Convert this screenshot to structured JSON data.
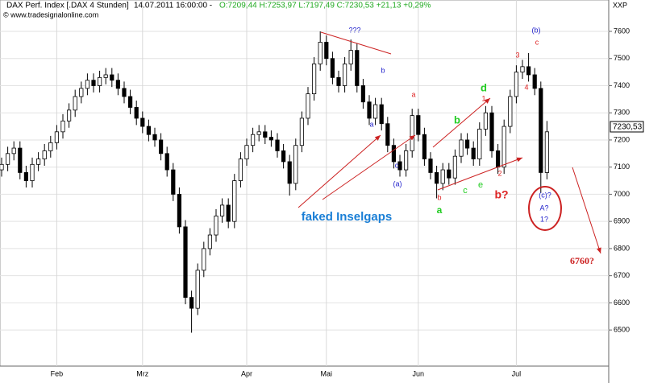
{
  "header": {
    "title": "DAX Perf. Index [.DAX  4 Stunden]",
    "datetime": "14.07.2011 16:00:00 -",
    "ohlc": "O:7209,44 H:7253,97 L:7197,49 C:7230,53 +21,13 +0,29%",
    "copyright": "© www.tradesignalonline.com",
    "corner": "XXP",
    "last_price": "7230,53"
  },
  "chart_data": {
    "type": "candlestick",
    "categories": [
      null,
      null,
      null,
      null,
      null,
      null,
      null,
      null,
      null,
      "Feb",
      null,
      null,
      null,
      null,
      null,
      null,
      null,
      null,
      null,
      null,
      null,
      null,
      null,
      "Mrz",
      null,
      null,
      null,
      null,
      null,
      null,
      null,
      null,
      null,
      null,
      null,
      null,
      null,
      null,
      null,
      null,
      "Apr",
      null,
      null,
      null,
      null,
      null,
      null,
      null,
      null,
      null,
      null,
      null,
      null,
      "Mai",
      null,
      null,
      null,
      null,
      null,
      null,
      null,
      null,
      null,
      null,
      null,
      null,
      null,
      null,
      "Jun",
      null,
      null,
      null,
      null,
      null,
      null,
      null,
      null,
      null,
      null,
      null,
      null,
      null,
      null,
      null,
      "Jul",
      null,
      null,
      null,
      null,
      null
    ],
    "open": [
      7090,
      7110,
      7150,
      7170,
      7080,
      7050,
      7110,
      7130,
      7160,
      7190,
      7230,
      7270,
      7310,
      7360,
      7390,
      7420,
      7400,
      7430,
      7440,
      7420,
      7390,
      7360,
      7320,
      7280,
      7250,
      7220,
      7200,
      7150,
      7090,
      7000,
      6880,
      6620,
      6580,
      6720,
      6800,
      6850,
      6920,
      6960,
      6900,
      7050,
      7130,
      7180,
      7220,
      7230,
      7210,
      7200,
      7160,
      7120,
      7040,
      7180,
      7280,
      7370,
      7480,
      7560,
      7500,
      7430,
      7400,
      7480,
      7530,
      7400,
      7340,
      7280,
      7330,
      7260,
      7180,
      7120,
      7090,
      7160,
      7290,
      7220,
      7130,
      7080,
      7040,
      7090,
      7060,
      7140,
      7200,
      7170,
      7130,
      7240,
      7300,
      7160,
      7100,
      7250,
      7360,
      7450,
      7470,
      7440,
      7390,
      7080
    ],
    "high": [
      7135,
      7175,
      7195,
      7195,
      7105,
      7135,
      7155,
      7185,
      7215,
      7255,
      7295,
      7335,
      7385,
      7415,
      7445,
      7445,
      7455,
      7465,
      7465,
      7445,
      7415,
      7385,
      7345,
      7305,
      7275,
      7245,
      7225,
      7175,
      7115,
      7025,
      6905,
      6645,
      6745,
      6825,
      6875,
      6945,
      6985,
      6985,
      7075,
      7155,
      7205,
      7245,
      7255,
      7255,
      7235,
      7225,
      7185,
      7145,
      7205,
      7305,
      7395,
      7505,
      7600,
      7585,
      7525,
      7455,
      7505,
      7570,
      7555,
      7425,
      7365,
      7355,
      7355,
      7285,
      7205,
      7145,
      7185,
      7315,
      7315,
      7245,
      7155,
      7105,
      7115,
      7115,
      7165,
      7225,
      7225,
      7195,
      7265,
      7325,
      7325,
      7185,
      7275,
      7385,
      7475,
      7495,
      7520,
      7465,
      7415,
      7270
    ],
    "low": [
      7065,
      7085,
      7125,
      7055,
      7025,
      7025,
      7085,
      7105,
      7135,
      7165,
      7205,
      7245,
      7285,
      7335,
      7365,
      7375,
      7375,
      7405,
      7395,
      7365,
      7335,
      7295,
      7255,
      7225,
      7195,
      7175,
      7125,
      7065,
      6975,
      6855,
      6595,
      6490,
      6555,
      6695,
      6775,
      6825,
      6895,
      6875,
      6875,
      7025,
      7105,
      7155,
      7195,
      7185,
      7175,
      7135,
      7095,
      6995,
      7015,
      7155,
      7255,
      7345,
      7455,
      7475,
      7405,
      7375,
      7375,
      7455,
      7375,
      7315,
      7255,
      7255,
      7235,
      7155,
      7095,
      7065,
      7065,
      7135,
      7195,
      7105,
      7055,
      6985,
      7015,
      7035,
      7035,
      7115,
      7145,
      7105,
      7105,
      7215,
      7135,
      7075,
      7075,
      7225,
      7335,
      7425,
      7415,
      7365,
      7005,
      7055
    ],
    "close": [
      7110,
      7150,
      7170,
      7080,
      7050,
      7110,
      7130,
      7160,
      7190,
      7230,
      7270,
      7310,
      7360,
      7390,
      7420,
      7400,
      7430,
      7440,
      7420,
      7390,
      7360,
      7320,
      7280,
      7250,
      7220,
      7200,
      7150,
      7090,
      7000,
      6880,
      6620,
      6580,
      6720,
      6800,
      6850,
      6920,
      6960,
      6900,
      7050,
      7130,
      7180,
      7220,
      7230,
      7210,
      7200,
      7160,
      7120,
      7040,
      7180,
      7280,
      7370,
      7480,
      7560,
      7500,
      7430,
      7400,
      7480,
      7530,
      7400,
      7340,
      7280,
      7330,
      7260,
      7180,
      7120,
      7090,
      7160,
      7290,
      7220,
      7130,
      7080,
      7040,
      7090,
      7060,
      7140,
      7200,
      7170,
      7130,
      7240,
      7300,
      7160,
      7100,
      7250,
      7360,
      7450,
      7470,
      7440,
      7390,
      7080,
      7230
    ],
    "ylim": [
      6367,
      7680
    ],
    "yticks": [
      6500,
      6600,
      6700,
      6800,
      6900,
      7000,
      7100,
      7200,
      7300,
      7400,
      7500,
      7600
    ],
    "up_color": "#ffffff",
    "down_color": "#000000",
    "annotations": [
      {
        "text": "???",
        "color": "#2222cc"
      },
      {
        "text": "b",
        "color": "#2222cc"
      },
      {
        "text": "a",
        "color": "#2222cc"
      },
      {
        "text": "c",
        "color": "#2222cc"
      },
      {
        "text": "(a)",
        "color": "#2222cc"
      },
      {
        "text": "a",
        "color": "#dd2222"
      },
      {
        "text": "d",
        "color": "#22cc22"
      },
      {
        "text": "1",
        "color": "#dd2222"
      },
      {
        "text": "b",
        "color": "#22cc22"
      },
      {
        "text": "2",
        "color": "#dd2222"
      },
      {
        "text": "e",
        "color": "#22cc22"
      },
      {
        "text": "b?",
        "color": "#dd2222"
      },
      {
        "text": "b",
        "color": "#dd2222"
      },
      {
        "text": "c",
        "color": "#22cc22"
      },
      {
        "text": "a",
        "color": "#22cc22"
      },
      {
        "text": "3",
        "color": "#dd2222"
      },
      {
        "text": "4",
        "color": "#dd2222"
      },
      {
        "text": "(b)",
        "color": "#2222cc"
      },
      {
        "text": "c",
        "color": "#dd2222"
      },
      {
        "text": "(c)?",
        "color": "#2222cc"
      },
      {
        "text": "A?",
        "color": "#2222cc"
      },
      {
        "text": "1?",
        "color": "#2222cc"
      },
      {
        "text": "faked Inselgaps",
        "color": "#1a7fd6"
      },
      {
        "text": "6760?",
        "color": "#cc2222"
      }
    ]
  }
}
